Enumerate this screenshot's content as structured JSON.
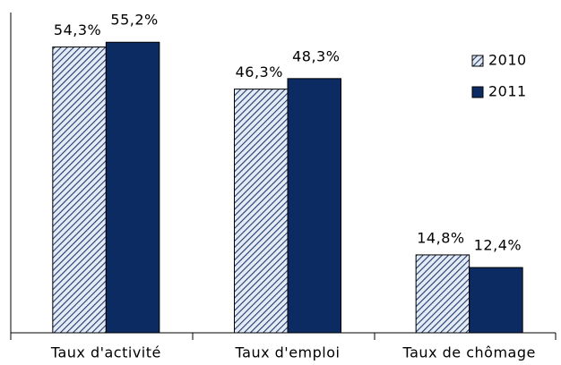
{
  "chart_data": {
    "type": "bar",
    "categories": [
      "Taux d'activité",
      "Taux d'emploi",
      "Taux de chômage"
    ],
    "series": [
      {
        "name": "2010",
        "color": "#1f3a6e",
        "pattern": "hatch",
        "values": [
          54.3,
          46.3,
          14.8
        ],
        "value_labels": [
          "54,3%",
          "46,3%",
          "14,8%"
        ]
      },
      {
        "name": "2011",
        "color": "#0c2b63",
        "pattern": "solid",
        "values": [
          55.2,
          48.3,
          12.4
        ],
        "value_labels": [
          "55,2%",
          "48,3%",
          "12,4%"
        ]
      }
    ],
    "ylim": [
      0,
      60
    ],
    "legend": "upper right"
  }
}
